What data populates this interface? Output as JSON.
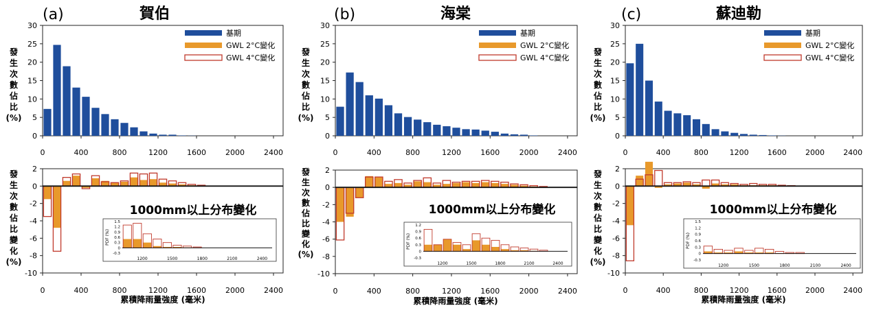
{
  "figure": {
    "x_axis_label": "累積降雨量強度 (毫米)",
    "top_ylabel": [
      "發",
      "生",
      "次",
      "數",
      "佔",
      "比",
      "(%)"
    ],
    "bottom_ylabel": [
      "發",
      "生",
      "次",
      "數",
      "佔",
      "比",
      "變",
      "化",
      "(%)"
    ],
    "inset_title": "1000mm以上分布變化",
    "inset_ylabel": "PDF (%)",
    "legend": {
      "baseline": "基期",
      "gwl2": "GWL 2°C變化",
      "gwl4": "GWL 4°C變化"
    },
    "colors": {
      "baseline": "#1f4e9c",
      "gwl2": "#e8992b",
      "gwl4": "#c0392b"
    }
  },
  "chart_data": [
    {
      "panel": "(a)",
      "title": "賀伯",
      "type": "bar",
      "bin_width": 100,
      "xlim": [
        0,
        2500
      ],
      "xticks": [
        0,
        400,
        800,
        1200,
        1600,
        2000,
        2400
      ],
      "top": {
        "ylim": [
          0,
          30
        ],
        "yticks": [
          0,
          5,
          10,
          15,
          20,
          25,
          30
        ],
        "baseline": [
          7.3,
          24.7,
          18.9,
          13.1,
          10.6,
          7.6,
          5.9,
          4.5,
          3.5,
          2.3,
          1.2,
          0.6,
          0.3,
          0.3,
          0.1,
          0.05,
          0,
          0,
          0,
          0,
          0,
          0,
          0,
          0
        ]
      },
      "bottom": {
        "ylim": [
          -10,
          2
        ],
        "yticks": [
          -10,
          -8,
          -6,
          -4,
          -2,
          0,
          2
        ],
        "gwl2": [
          -1.5,
          -4.8,
          0.6,
          1.2,
          -0.2,
          0.9,
          0.6,
          0.4,
          0.5,
          1.0,
          0.7,
          0.8,
          0.4,
          0.3,
          0.2,
          0.1,
          0.05,
          0,
          0,
          0,
          0,
          0,
          0,
          0
        ],
        "gwl4": [
          -3.5,
          -7.5,
          1.0,
          1.4,
          -0.3,
          1.2,
          0.5,
          0.4,
          0.6,
          1.5,
          1.4,
          1.5,
          0.8,
          0.6,
          0.4,
          0.2,
          0.1,
          0,
          0,
          0,
          0,
          0,
          0,
          0
        ]
      },
      "inset": {
        "xticks": [
          1200,
          1500,
          1800,
          2100,
          2400
        ],
        "yticks": [
          -0.3,
          0,
          0.3,
          0.6,
          0.9,
          1.2,
          1.5
        ],
        "ylim": [
          -0.3,
          1.5
        ],
        "xlim": [
          1000,
          2500
        ],
        "gwl2": [
          0.5,
          0.5,
          0.3,
          0.1,
          0.05,
          0.05,
          0.02,
          0.01
        ],
        "gwl4": [
          1.3,
          1.4,
          0.8,
          0.5,
          0.3,
          0.15,
          0.1,
          0.05
        ]
      }
    },
    {
      "panel": "(b)",
      "title": "海棠",
      "type": "bar",
      "bin_width": 100,
      "xlim": [
        0,
        2500
      ],
      "xticks": [
        0,
        400,
        800,
        1200,
        1600,
        2000,
        2400
      ],
      "top": {
        "ylim": [
          0,
          30
        ],
        "yticks": [
          0,
          5,
          10,
          15,
          20,
          25,
          30
        ],
        "baseline": [
          7.9,
          17.2,
          14.6,
          11.0,
          10.1,
          8.3,
          6.1,
          5.1,
          4.4,
          3.7,
          3.0,
          2.6,
          2.2,
          1.8,
          1.7,
          1.4,
          1.1,
          0.6,
          0.4,
          0.3,
          0.1,
          0,
          0,
          0
        ]
      },
      "bottom": {
        "ylim": [
          -10,
          2
        ],
        "yticks": [
          -10,
          -8,
          -6,
          -4,
          -2,
          0,
          2
        ],
        "gwl2": [
          -4.0,
          -3.4,
          -1.2,
          1.3,
          1.2,
          0.4,
          0.5,
          0.3,
          0.7,
          0.6,
          0.3,
          0.4,
          0.5,
          0.6,
          0.5,
          0.6,
          0.5,
          0.4,
          0.3,
          0.2,
          0.1,
          0.05,
          0,
          0
        ],
        "gwl4": [
          -6.1,
          -3.0,
          -1.2,
          1.2,
          1.2,
          0.7,
          0.9,
          0.5,
          0.8,
          1.1,
          0.5,
          0.8,
          0.6,
          0.7,
          0.7,
          0.8,
          0.7,
          0.6,
          0.4,
          0.3,
          0.2,
          0.1,
          0,
          0
        ]
      },
      "inset": {
        "xticks": [
          1200,
          1500,
          1800,
          2100,
          2400
        ],
        "yticks": [
          -0.3,
          0,
          0.3,
          0.6,
          0.9,
          1.2
        ],
        "ylim": [
          -0.3,
          1.2
        ],
        "xlim": [
          1000,
          2500
        ],
        "gwl2": [
          0.3,
          0.3,
          0.55,
          0.3,
          0.1,
          0.5,
          0.3,
          0.2,
          0.1,
          0.05,
          0.05,
          0.02,
          0.01
        ],
        "gwl4": [
          1.0,
          0.3,
          0.55,
          0.4,
          0.3,
          0.8,
          0.6,
          0.5,
          0.3,
          0.2,
          0.15,
          0.1,
          0.05
        ]
      }
    },
    {
      "panel": "(c)",
      "title": "蘇迪勒",
      "type": "bar",
      "bin_width": 100,
      "xlim": [
        0,
        2500
      ],
      "xticks": [
        0,
        400,
        800,
        1200,
        1600,
        2000,
        2400
      ],
      "top": {
        "ylim": [
          0,
          30
        ],
        "yticks": [
          0,
          5,
          10,
          15,
          20,
          25,
          30
        ],
        "baseline": [
          19.7,
          25.0,
          15.0,
          9.3,
          6.8,
          6.1,
          5.6,
          4.5,
          3.2,
          1.8,
          1.2,
          0.8,
          0.5,
          0.3,
          0.2,
          0.1,
          0.05,
          0,
          0,
          0,
          0,
          0,
          0,
          0
        ]
      },
      "bottom": {
        "ylim": [
          -10,
          2
        ],
        "yticks": [
          -10,
          -8,
          -6,
          -4,
          -2,
          0,
          2
        ],
        "gwl2": [
          -4.5,
          1.2,
          2.8,
          -0.2,
          0.2,
          0.3,
          0.4,
          0.2,
          -0.3,
          0.3,
          0.2,
          0.2,
          0.1,
          0.1,
          0.1,
          0.1,
          0.05,
          0,
          0,
          0,
          0,
          0,
          0,
          0
        ],
        "gwl4": [
          -8.6,
          0.8,
          1.3,
          1.8,
          0.4,
          0.4,
          0.5,
          0.4,
          0.7,
          0.7,
          0.4,
          0.3,
          0.2,
          0.3,
          0.2,
          0.2,
          0.1,
          0.05,
          0,
          0,
          0,
          0,
          0,
          0
        ]
      },
      "inset": {
        "xticks": [
          1200,
          1500,
          1800,
          2100,
          2400
        ],
        "yticks": [
          -0.3,
          0,
          0.3,
          0.6,
          0.9,
          1.2,
          1.5
        ],
        "ylim": [
          -0.3,
          1.5
        ],
        "xlim": [
          1000,
          2500
        ],
        "gwl2": [
          0.1,
          0.05,
          0.05,
          0.1,
          0.05,
          0.05,
          0.05,
          0.02,
          0.02,
          0.01
        ],
        "gwl4": [
          0.35,
          0.2,
          0.15,
          0.25,
          0.15,
          0.25,
          0.2,
          0.1,
          0.05,
          0.05
        ]
      }
    }
  ]
}
